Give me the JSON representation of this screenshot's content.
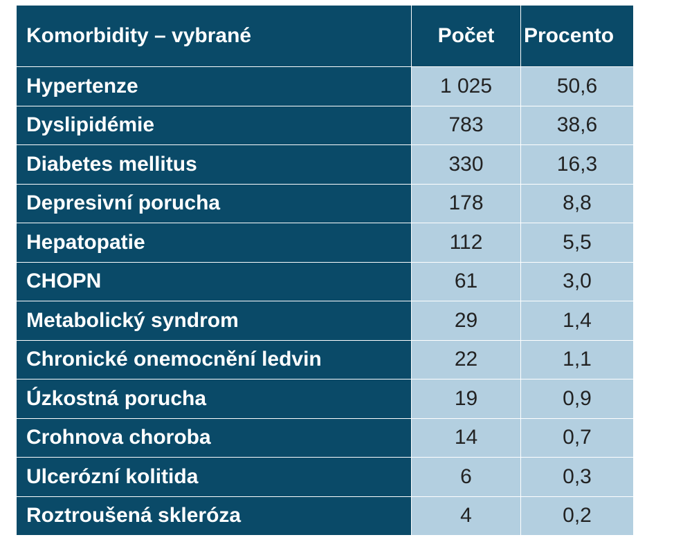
{
  "table": {
    "headers": {
      "name": "Komorbidity – vybrané",
      "count": "Počet",
      "percent": "Procento"
    },
    "rows": [
      {
        "name": "Hypertenze",
        "count": "1 025",
        "percent": "50,6"
      },
      {
        "name": "Dyslipidémie",
        "count": "783",
        "percent": "38,6"
      },
      {
        "name": "Diabetes mellitus",
        "count": "330",
        "percent": "16,3"
      },
      {
        "name": "Depresivní porucha",
        "count": "178",
        "percent": "8,8"
      },
      {
        "name": "Hepatopatie",
        "count": "112",
        "percent": "5,5"
      },
      {
        "name": "CHOPN",
        "count": "61",
        "percent": "3,0"
      },
      {
        "name": "Metabolický syndrom",
        "count": "29",
        "percent": "1,4"
      },
      {
        "name": "Chronické onemocnění ledvin",
        "count": "22",
        "percent": "1,1"
      },
      {
        "name": "Úzkostná porucha",
        "count": "19",
        "percent": "0,9"
      },
      {
        "name": "Crohnova choroba",
        "count": "14",
        "percent": "0,7"
      },
      {
        "name": "Ulcerózní kolitida",
        "count": "6",
        "percent": "0,3"
      },
      {
        "name": "Roztroušená skleróza",
        "count": "4",
        "percent": "0,2"
      }
    ]
  },
  "colors": {
    "header_bg": "#0a4a68",
    "cell_bg": "#b3cfe0"
  }
}
